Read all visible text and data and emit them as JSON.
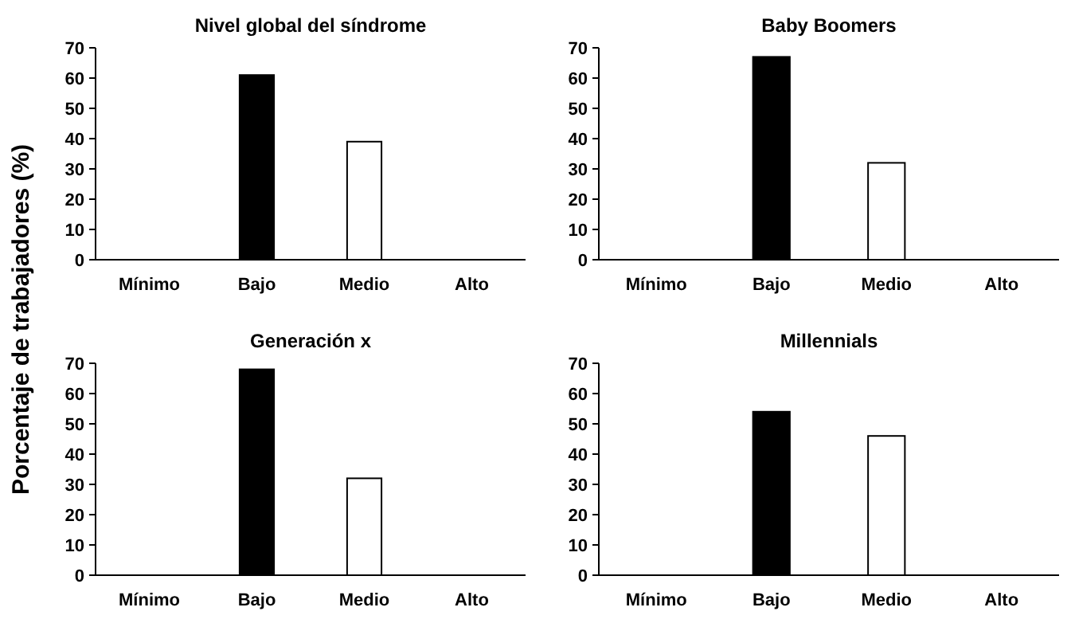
{
  "chart_data": [
    {
      "type": "bar",
      "title": "Nivel global del síndrome",
      "ylabel": "Porcentaje de trabajadores (%)",
      "categories": [
        "Mínimo",
        "Bajo",
        "Medio",
        "Alto"
      ],
      "values": [
        0,
        61,
        39,
        0
      ],
      "colors": [
        "#000000",
        "#000000",
        "#ffffff",
        "#ffffff"
      ],
      "ylim": [
        0,
        70
      ],
      "yticks": [
        0,
        10,
        20,
        30,
        40,
        50,
        60,
        70
      ],
      "grid": false
    },
    {
      "type": "bar",
      "title": "Baby Boomers",
      "categories": [
        "Mínimo",
        "Bajo",
        "Medio",
        "Alto"
      ],
      "values": [
        0,
        67,
        32,
        0
      ],
      "colors": [
        "#000000",
        "#000000",
        "#ffffff",
        "#ffffff"
      ],
      "ylim": [
        0,
        70
      ],
      "yticks": [
        0,
        10,
        20,
        30,
        40,
        50,
        60,
        70
      ],
      "grid": false
    },
    {
      "type": "bar",
      "title": "Generación x",
      "categories": [
        "Mínimo",
        "Bajo",
        "Medio",
        "Alto"
      ],
      "values": [
        0,
        68,
        32,
        0
      ],
      "colors": [
        "#000000",
        "#000000",
        "#ffffff",
        "#ffffff"
      ],
      "ylim": [
        0,
        70
      ],
      "yticks": [
        0,
        10,
        20,
        30,
        40,
        50,
        60,
        70
      ],
      "grid": false
    },
    {
      "type": "bar",
      "title": "Millennials",
      "categories": [
        "Mínimo",
        "Bajo",
        "Medio",
        "Alto"
      ],
      "values": [
        0,
        54,
        46,
        0
      ],
      "colors": [
        "#000000",
        "#000000",
        "#ffffff",
        "#ffffff"
      ],
      "ylim": [
        0,
        70
      ],
      "yticks": [
        0,
        10,
        20,
        30,
        40,
        50,
        60,
        70
      ],
      "grid": false
    }
  ]
}
